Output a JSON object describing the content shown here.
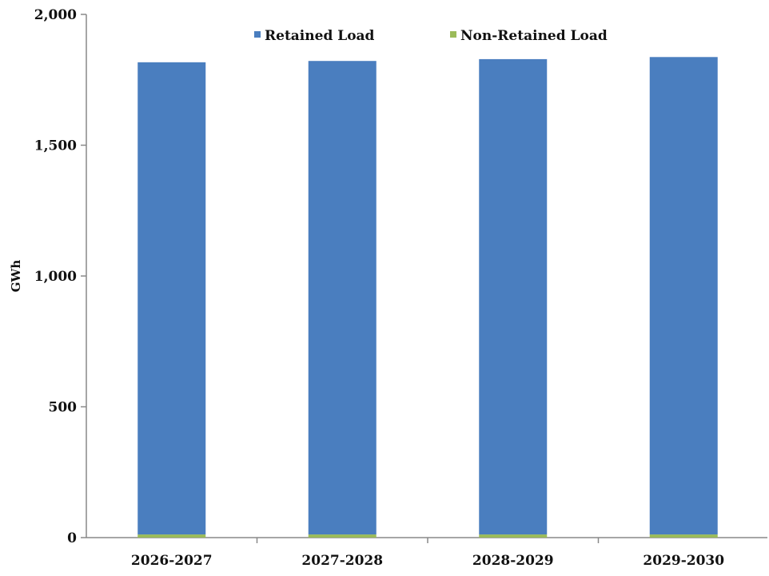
{
  "chart_data": {
    "type": "bar",
    "stacked": true,
    "title": "",
    "xlabel": "",
    "ylabel": "GWh",
    "ylim": [
      0,
      2000
    ],
    "yticks": [
      0,
      500,
      1000,
      1500,
      2000
    ],
    "ytick_labels": [
      "0",
      "500",
      "1,000",
      "1,500",
      "2,000"
    ],
    "categories": [
      "2026-2027",
      "2027-2028",
      "2028-2029",
      "2029-2030"
    ],
    "series": [
      {
        "name": "Retained Load",
        "color": "#4a7ebf",
        "values": [
          1805,
          1810,
          1817,
          1825
        ]
      },
      {
        "name": "Non-Retained Load",
        "color": "#9bbb59",
        "values": [
          12,
          12,
          12,
          12
        ]
      }
    ],
    "grid": false,
    "legend_position": "top"
  }
}
